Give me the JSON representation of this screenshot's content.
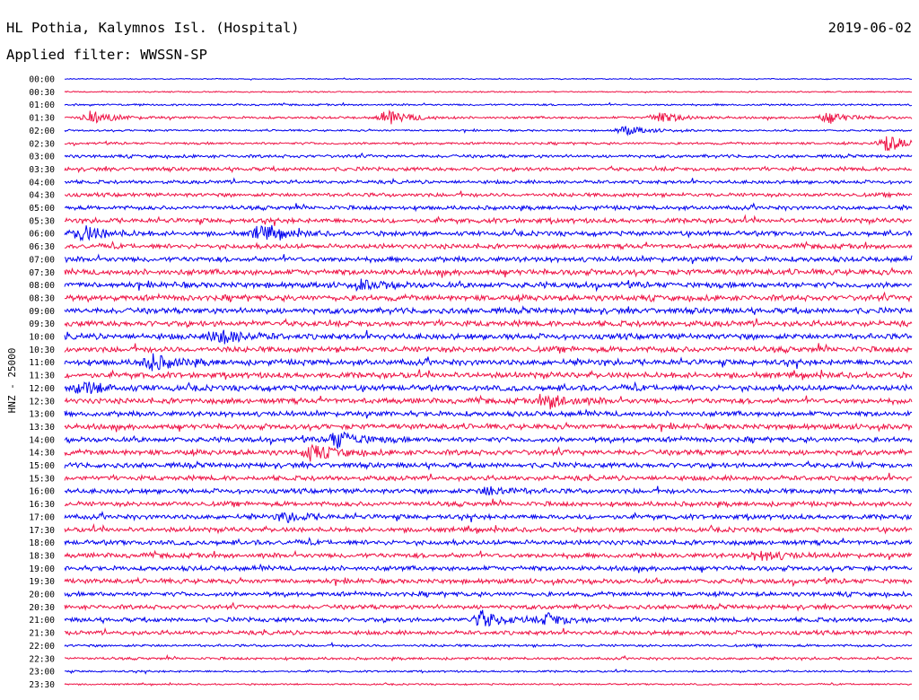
{
  "header": {
    "station": "HL Pothia, Kalymnos Isl. (Hospital)",
    "date": "2019-06-02",
    "filter": "Applied filter: WWSSN-SP"
  },
  "chart_data": {
    "type": "line",
    "ylabel": "HNZ - 25000",
    "row_labels": [
      "00:00",
      "00:30",
      "01:00",
      "01:30",
      "02:00",
      "02:30",
      "03:00",
      "03:30",
      "04:00",
      "04:30",
      "05:00",
      "05:30",
      "06:00",
      "06:30",
      "07:00",
      "07:30",
      "08:00",
      "08:30",
      "09:00",
      "09:30",
      "10:00",
      "10:30",
      "11:00",
      "11:30",
      "12:00",
      "12:30",
      "13:00",
      "13:30",
      "14:00",
      "14:30",
      "15:00",
      "15:30",
      "16:00",
      "16:30",
      "17:00",
      "17:30",
      "18:00",
      "18:30",
      "19:00",
      "19:30",
      "20:00",
      "20:30",
      "21:00",
      "21:30",
      "22:00",
      "22:30",
      "23:00",
      "23:30"
    ],
    "series_colors": [
      "#0000ee",
      "#ee1144"
    ],
    "noise_level": [
      0.6,
      0.8,
      1.2,
      1.5,
      1.2,
      1.5,
      2.0,
      2.4,
      2.2,
      2.4,
      2.6,
      3.0,
      3.0,
      3.0,
      3.2,
      3.6,
      3.6,
      3.6,
      3.6,
      3.6,
      3.6,
      3.6,
      3.6,
      3.6,
      3.6,
      3.4,
      3.2,
      3.4,
      3.2,
      3.4,
      3.2,
      3.0,
      3.0,
      3.0,
      3.0,
      3.0,
      3.0,
      3.0,
      3.0,
      3.0,
      2.8,
      2.8,
      2.8,
      2.6,
      1.6,
      1.6,
      1.2,
      1.0
    ],
    "events": [
      {
        "row": 3,
        "t": 0.03,
        "amp": 7
      },
      {
        "row": 3,
        "t": 0.38,
        "amp": 8
      },
      {
        "row": 3,
        "t": 0.7,
        "amp": 6
      },
      {
        "row": 3,
        "t": 0.9,
        "amp": 6
      },
      {
        "row": 4,
        "t": 0.66,
        "amp": 5
      },
      {
        "row": 5,
        "t": 0.97,
        "amp": 9
      },
      {
        "row": 12,
        "t": 0.02,
        "amp": 9
      },
      {
        "row": 12,
        "t": 0.23,
        "amp": 9
      },
      {
        "row": 16,
        "t": 0.35,
        "amp": 4
      },
      {
        "row": 20,
        "t": 0.18,
        "amp": 9
      },
      {
        "row": 22,
        "t": 0.1,
        "amp": 9
      },
      {
        "row": 24,
        "t": 0.02,
        "amp": 7
      },
      {
        "row": 25,
        "t": 0.57,
        "amp": 8
      },
      {
        "row": 28,
        "t": 0.32,
        "amp": 10
      },
      {
        "row": 29,
        "t": 0.29,
        "amp": 8
      },
      {
        "row": 32,
        "t": 0.5,
        "amp": 5
      },
      {
        "row": 34,
        "t": 0.26,
        "amp": 5
      },
      {
        "row": 37,
        "t": 0.82,
        "amp": 6
      },
      {
        "row": 42,
        "t": 0.49,
        "amp": 9
      },
      {
        "row": 42,
        "t": 0.57,
        "amp": 6
      }
    ]
  }
}
